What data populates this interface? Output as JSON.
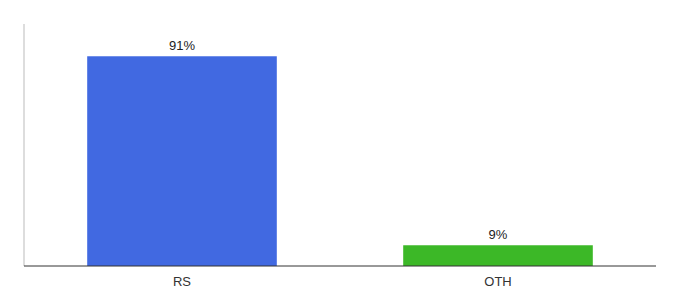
{
  "chart_data": {
    "type": "bar",
    "categories": [
      "RS",
      "OTH"
    ],
    "values": [
      91,
      9
    ],
    "value_labels": [
      "91%",
      "9%"
    ],
    "colors": [
      "#4169e1",
      "#3cb827"
    ],
    "ylim": [
      0,
      105
    ],
    "data_labels": true,
    "tick_labels": "x"
  }
}
